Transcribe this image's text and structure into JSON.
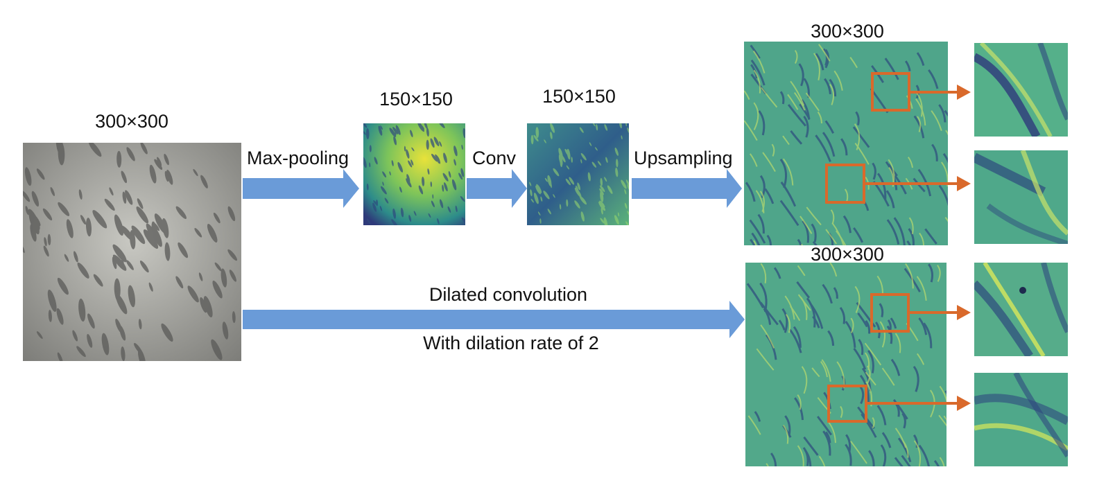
{
  "labels": {
    "input_size": "300×300",
    "pool_size": "150×150",
    "conv_size": "150×150",
    "up_size": "300×300",
    "dilated_size": "300×300",
    "maxpool_op": "Max-pooling",
    "conv_op": "Conv",
    "upsample_op": "Upsampling",
    "dilated_op": "Dilated convolution",
    "dilated_rate": "With dilation rate of 2"
  },
  "colors": {
    "flow_arrow": "#6A9BD8",
    "zoom_arrow": "#D9692B",
    "zoom_box": "#D9692B",
    "grayscale_base": "#9A9A96",
    "feature_map_base": "#4FA58A",
    "pooled_bright": "#E8E23A",
    "pooled_dark": "#2E3A7A"
  }
}
